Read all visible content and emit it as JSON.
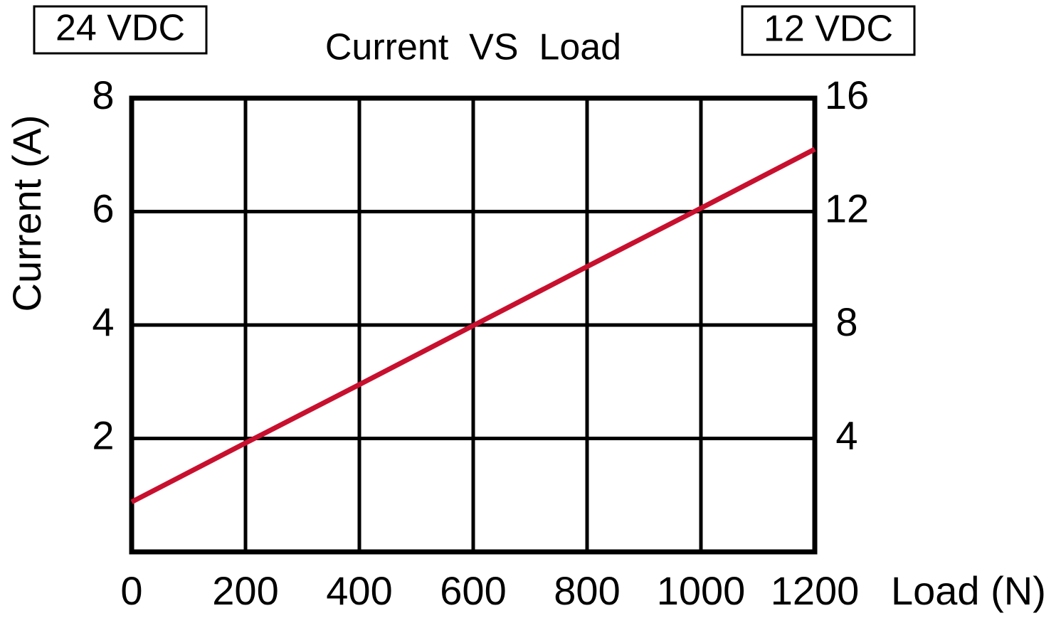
{
  "chart_data": {
    "type": "line",
    "title": "Current  VS  Load",
    "x_label": "Load (N)",
    "y_label": "Current (A)",
    "annotations": [
      "24 VDC",
      "12 VDC"
    ],
    "x": [
      0,
      200,
      400,
      600,
      800,
      1000,
      1200
    ],
    "series": [
      {
        "color": "#c8102e",
        "values": [
          0.88,
          1.92,
          2.95,
          3.99,
          5.03,
          6.06,
          7.1
        ]
      }
    ],
    "xlim": [
      0,
      1200
    ],
    "xticks": [
      0,
      200,
      400,
      600,
      800,
      1000,
      1200
    ],
    "ylim": [
      0,
      8
    ],
    "yticks": [
      2,
      4,
      6,
      8
    ],
    "y2lim": [
      0,
      16
    ],
    "y2ticks": [
      4,
      8,
      12,
      16
    ],
    "grid": true
  }
}
